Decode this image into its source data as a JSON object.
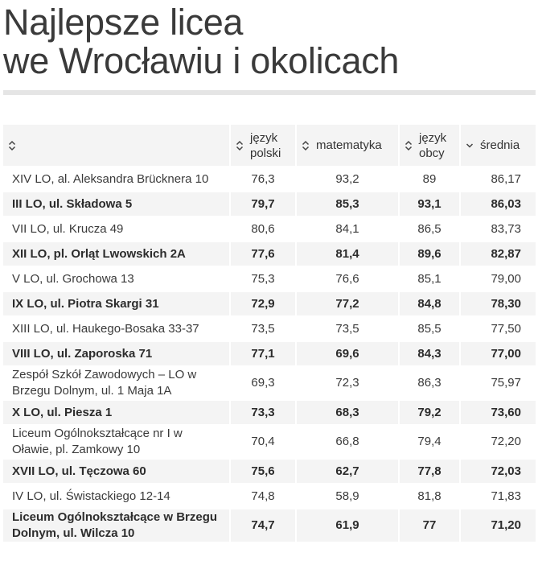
{
  "title": {
    "line1": "Najlepsze licea",
    "line2": "we Wrocławiu i okolicach"
  },
  "table": {
    "headers": {
      "name": "",
      "polski": "język polski",
      "matematyka": "matematyka",
      "obcy": "język obcy",
      "srednia": "średnia"
    },
    "sort_icons": {
      "name": "sort-both-icon",
      "polski": "sort-both-icon",
      "matematyka": "sort-both-icon",
      "obcy": "sort-both-icon",
      "srednia": "sort-desc-icon"
    },
    "rows": [
      {
        "name": "XIV LO, al. Aleksandra Brücknera 10",
        "polski": "76,3",
        "matematyka": "93,2",
        "obcy": "89",
        "srednia": "86,17"
      },
      {
        "name": "III LO, ul. Składowa 5",
        "polski": "79,7",
        "matematyka": "85,3",
        "obcy": "93,1",
        "srednia": "86,03"
      },
      {
        "name": "VII LO, ul. Krucza 49",
        "polski": "80,6",
        "matematyka": "84,1",
        "obcy": "86,5",
        "srednia": "83,73"
      },
      {
        "name": "XII LO, pl. Orląt Lwowskich 2A",
        "polski": "77,6",
        "matematyka": "81,4",
        "obcy": "89,6",
        "srednia": "82,87"
      },
      {
        "name": "V LO, ul. Grochowa 13",
        "polski": "75,3",
        "matematyka": "76,6",
        "obcy": "85,1",
        "srednia": "79,00"
      },
      {
        "name": "IX LO, ul. Piotra Skargi 31",
        "polski": "72,9",
        "matematyka": "77,2",
        "obcy": "84,8",
        "srednia": "78,30"
      },
      {
        "name": "XIII LO, ul. Haukego-Bosaka 33-37",
        "polski": "73,5",
        "matematyka": "73,5",
        "obcy": "85,5",
        "srednia": "77,50"
      },
      {
        "name": "VIII LO, ul. Zaporoska 71",
        "polski": "77,1",
        "matematyka": "69,6",
        "obcy": "84,3",
        "srednia": "77,00"
      },
      {
        "name": "Zespół Szkół Zawodowych – LO w Brzegu Dolnym, ul. 1 Maja 1A",
        "polski": "69,3",
        "matematyka": "72,3",
        "obcy": "86,3",
        "srednia": "75,97"
      },
      {
        "name": "X LO, ul. Piesza 1",
        "polski": "73,3",
        "matematyka": "68,3",
        "obcy": "79,2",
        "srednia": "73,60"
      },
      {
        "name": "Liceum Ogólnokształcące nr I w Oławie, pl. Zamkowy 10",
        "polski": "70,4",
        "matematyka": "66,8",
        "obcy": "79,4",
        "srednia": "72,20"
      },
      {
        "name": "XVII LO, ul. Tęczowa 60",
        "polski": "75,6",
        "matematyka": "62,7",
        "obcy": "77,8",
        "srednia": "72,03"
      },
      {
        "name": "IV LO, ul. Świstackiego 12-14",
        "polski": "74,8",
        "matematyka": "58,9",
        "obcy": "81,8",
        "srednia": "71,83"
      },
      {
        "name": "Liceum Ogólnokształcące w Brzegu Dolnym, ul. Wilcza 10",
        "polski": "74,7",
        "matematyka": "61,9",
        "obcy": "77",
        "srednia": "71,20"
      }
    ]
  }
}
